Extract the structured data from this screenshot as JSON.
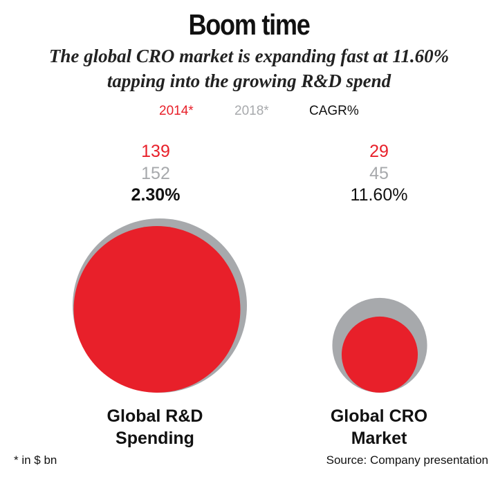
{
  "title": "Boom time",
  "subtitle_line1": "The global CRO market is expanding fast at 11.60%",
  "subtitle_line2": "tapping into the growing R&D spend",
  "legend": {
    "items": [
      {
        "label": "2014*",
        "color": "#e8202a"
      },
      {
        "label": "2018*",
        "color": "#a7a9ac"
      },
      {
        "label": "CAGR%",
        "color": "#111111"
      }
    ]
  },
  "chart_data": {
    "type": "bubble",
    "title": "Boom time",
    "categories": [
      "Global R&D Spending",
      "Global CRO Market"
    ],
    "category_labels": [
      [
        "Global R&D",
        "Spending"
      ],
      [
        "Global CRO",
        "Market"
      ]
    ],
    "series": [
      {
        "name": "2014*",
        "values": [
          139,
          29
        ],
        "color": "#e8202a"
      },
      {
        "name": "2018*",
        "values": [
          152,
          45
        ],
        "color": "#a7a9ac"
      }
    ],
    "cagr": {
      "name": "CAGR%",
      "values": [
        "2.30%",
        "11.60%"
      ]
    },
    "unit_note": "* in $ bn"
  },
  "footer": {
    "note": "* in $ bn",
    "source": "Source: Company presentation"
  }
}
